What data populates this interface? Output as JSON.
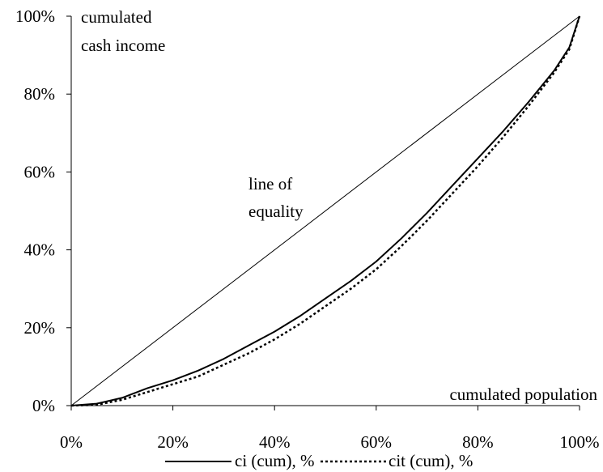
{
  "chart_data": {
    "type": "line",
    "xlabel": "cumulated population",
    "ylabel_lines": [
      "cumulated",
      "cash income"
    ],
    "xlim": [
      0,
      100
    ],
    "ylim": [
      0,
      100
    ],
    "x_ticks": [
      "0%",
      "20%",
      "40%",
      "60%",
      "80%",
      "100%"
    ],
    "y_ticks": [
      "0%",
      "20%",
      "40%",
      "60%",
      "80%",
      "100%"
    ],
    "grid": false,
    "legend_position": "bottom",
    "annotation_lines": [
      "line of",
      "equality"
    ],
    "series": [
      {
        "name": "",
        "style": "thin",
        "x": [
          0,
          100
        ],
        "y": [
          0,
          100
        ]
      },
      {
        "name": "ci (cum), %",
        "style": "solid",
        "x": [
          0,
          5,
          10,
          15,
          20,
          25,
          30,
          35,
          40,
          45,
          50,
          55,
          60,
          65,
          70,
          75,
          80,
          85,
          90,
          95,
          98,
          100
        ],
        "y": [
          0,
          0.5,
          2,
          4.5,
          6.5,
          9,
          12,
          15.5,
          19,
          23,
          27.5,
          32,
          37,
          43,
          49.5,
          56.5,
          63.5,
          70.5,
          78,
          86,
          92,
          100
        ]
      },
      {
        "name": "cit (cum), %",
        "style": "dotted",
        "x": [
          0,
          5,
          10,
          15,
          20,
          25,
          30,
          35,
          40,
          45,
          50,
          55,
          60,
          65,
          70,
          75,
          80,
          85,
          90,
          95,
          98,
          100
        ],
        "y": [
          0,
          0.2,
          1.5,
          3.5,
          5.5,
          7.5,
          10.5,
          13.5,
          17,
          21,
          25.5,
          30,
          35,
          41,
          47.5,
          54.5,
          61.5,
          69,
          77,
          85.5,
          91.5,
          100
        ]
      }
    ]
  }
}
